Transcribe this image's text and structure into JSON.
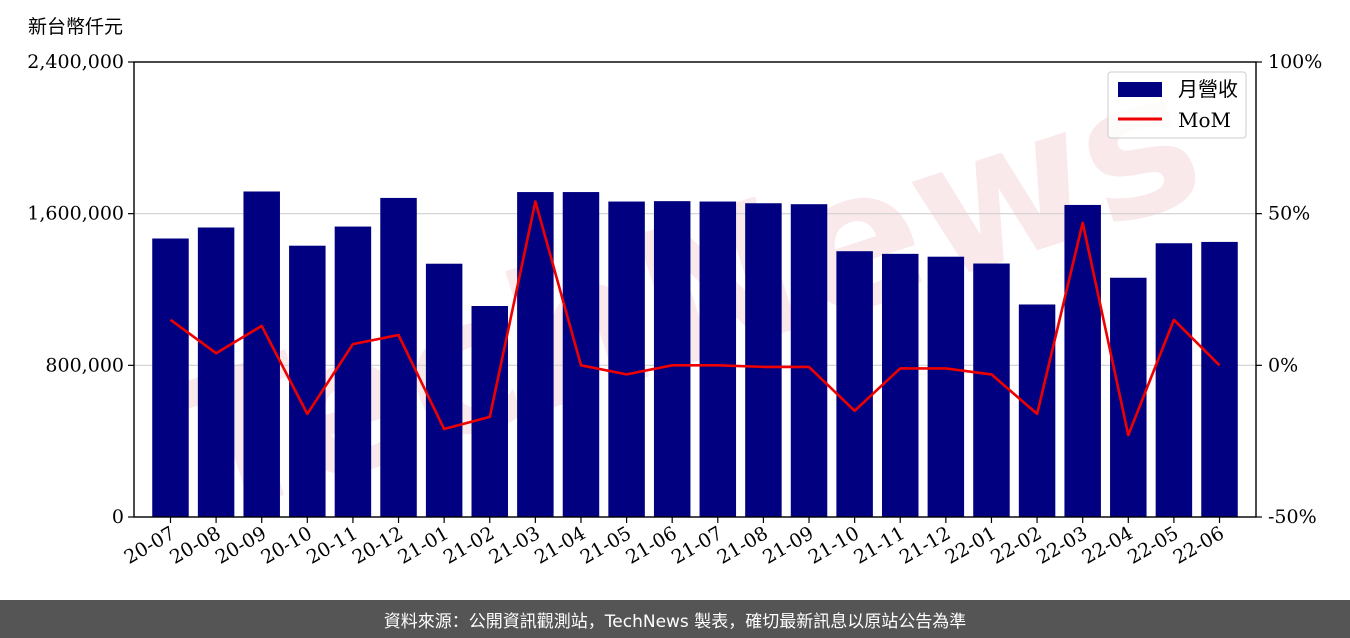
{
  "chart_data": {
    "type": "bar",
    "y_unit_label": "新台幣仟元",
    "categories": [
      "20-07",
      "20-08",
      "20-09",
      "20-10",
      "20-11",
      "20-12",
      "21-01",
      "21-02",
      "21-03",
      "21-04",
      "21-05",
      "21-06",
      "21-07",
      "21-08",
      "21-09",
      "21-10",
      "21-11",
      "21-12",
      "22-01",
      "22-02",
      "22-03",
      "22-04",
      "22-05",
      "22-06"
    ],
    "series": [
      {
        "name": "月營收",
        "type": "bar",
        "axis": "left",
        "color": "#000080",
        "values": [
          1469000,
          1527000,
          1717000,
          1431000,
          1532000,
          1683000,
          1336000,
          1113000,
          1714000,
          1714000,
          1664000,
          1666000,
          1664000,
          1655000,
          1650000,
          1402000,
          1388000,
          1373000,
          1337000,
          1121000,
          1646000,
          1262000,
          1444000,
          1451000
        ]
      },
      {
        "name": "MoM",
        "type": "line",
        "axis": "right",
        "color": "#ee0000",
        "values": [
          15,
          4,
          13,
          -16,
          7,
          10,
          -21,
          -17,
          54,
          0,
          -3,
          0,
          0,
          -0.5,
          -0.5,
          -15,
          -1,
          -1,
          -3,
          -16,
          47,
          -23,
          15,
          0
        ]
      }
    ],
    "left_axis": {
      "ylim": [
        0,
        2400000
      ],
      "ticks": [
        "0",
        "800,000",
        "1,600,000",
        "2,400,000"
      ]
    },
    "right_axis": {
      "ylim": [
        -50,
        100
      ],
      "ticks": [
        "-50%",
        "0%",
        "50%",
        "100%"
      ]
    },
    "grid": "horizontal",
    "legend_position": "top-right"
  },
  "watermark": "TechNews",
  "footer": "資料來源：公開資訊觀測站，TechNews 製表，確切最新訊息以原站公告為準"
}
